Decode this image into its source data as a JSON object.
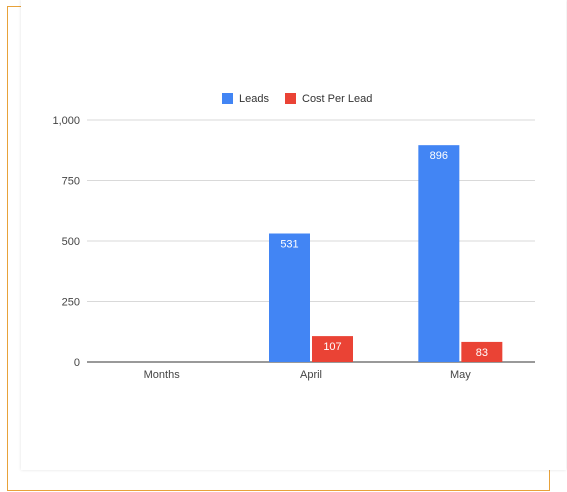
{
  "chart_data": {
    "type": "bar",
    "categories": [
      "Months",
      "April",
      "May"
    ],
    "series": [
      {
        "name": "Leads",
        "values": [
          null,
          531,
          896
        ],
        "color": "#4285f4"
      },
      {
        "name": "Cost Per Lead",
        "values": [
          null,
          107,
          83
        ],
        "color": "#ea4335"
      }
    ],
    "data_labels": [
      [
        null,
        "531",
        "896"
      ],
      [
        null,
        "107",
        "83"
      ]
    ],
    "yticks": [
      "0",
      "250",
      "500",
      "750",
      "1,000"
    ],
    "ylim": [
      0,
      1000
    ],
    "grid": true,
    "legend_position": "top"
  }
}
